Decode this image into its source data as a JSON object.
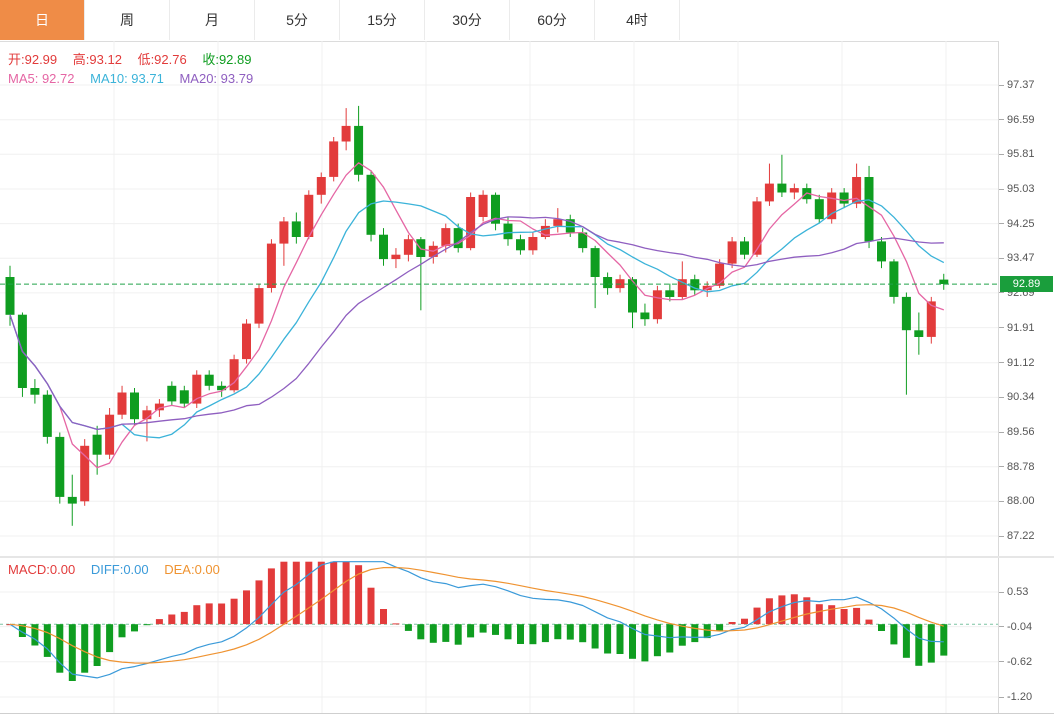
{
  "tabs": [
    {
      "key": "day",
      "label": "日",
      "active": true
    },
    {
      "key": "week",
      "label": "周",
      "active": false
    },
    {
      "key": "month",
      "label": "月",
      "active": false
    },
    {
      "key": "5min",
      "label": "5分",
      "active": false
    },
    {
      "key": "15min",
      "label": "15分",
      "active": false
    },
    {
      "key": "30min",
      "label": "30分",
      "active": false
    },
    {
      "key": "60min",
      "label": "60分",
      "active": false
    },
    {
      "key": "4hour",
      "label": "4时",
      "active": false
    }
  ],
  "price_panel": {
    "ohlc_legend": {
      "open": "开:92.99",
      "high": "高:93.12",
      "low": "低:92.76",
      "close": "收:92.89"
    },
    "ma_legend": {
      "ma5": "MA5: 92.72",
      "ma10": "MA10: 93.71",
      "ma20": "MA20: 93.79"
    },
    "axis_labels": [
      "97.37",
      "96.59",
      "95.81",
      "95.03",
      "94.25",
      "93.47",
      "92.69",
      "91.91",
      "91.12",
      "90.34",
      "89.56",
      "88.78",
      "88.00",
      "87.22"
    ],
    "current_price": "92.89"
  },
  "macd_panel": {
    "legend": {
      "macd": "MACD:0.00",
      "diff": "DIFF:0.00",
      "dea": "DEA:0.00"
    },
    "axis_labels": [
      "0.53",
      "-0.04",
      "-0.62",
      "-1.20"
    ]
  },
  "colors": {
    "up": "#e23b3b",
    "down": "#0f9d20",
    "ma5": "#e566a4",
    "ma10": "#3bb3d9",
    "ma20": "#8f5fc0",
    "diff": "#3a9ad9",
    "dea": "#ef9331",
    "active_tab": "#ef8c47",
    "price_line": "#22a24a",
    "badge_bg": "#1a9e3c"
  },
  "chart_data": [
    {
      "type": "candlestick",
      "panel": "price",
      "x": "time bars, oldest to newest (daily)",
      "ylim": [
        86.8,
        98.3
      ],
      "y_ticks": [
        97.37,
        96.59,
        95.81,
        95.03,
        94.25,
        93.47,
        92.69,
        91.91,
        91.12,
        90.34,
        89.56,
        88.78,
        88.0,
        87.22
      ],
      "grid": true,
      "legend_position": "top-left",
      "last_close": 92.89,
      "overlays": [
        {
          "name": "MA5",
          "type": "line",
          "period": 5,
          "legend_value": 92.72
        },
        {
          "name": "MA10",
          "type": "line",
          "period": 10,
          "legend_value": 93.71
        },
        {
          "name": "MA20",
          "type": "line",
          "period": 20,
          "legend_value": 93.79
        }
      ],
      "ohlc": [
        [
          93.05,
          93.3,
          91.95,
          92.2
        ],
        [
          92.2,
          92.25,
          90.35,
          90.55
        ],
        [
          90.55,
          90.75,
          90.2,
          90.4
        ],
        [
          90.4,
          90.5,
          89.3,
          89.45
        ],
        [
          89.45,
          89.55,
          87.95,
          88.1
        ],
        [
          88.1,
          88.6,
          87.45,
          87.95
        ],
        [
          88.0,
          89.4,
          87.9,
          89.25
        ],
        [
          89.5,
          89.7,
          88.6,
          89.05
        ],
        [
          89.05,
          90.1,
          88.95,
          89.95
        ],
        [
          89.95,
          90.6,
          89.85,
          90.45
        ],
        [
          90.45,
          90.55,
          89.7,
          89.85
        ],
        [
          89.85,
          90.15,
          89.35,
          90.05
        ],
        [
          90.05,
          90.3,
          89.9,
          90.2
        ],
        [
          90.6,
          90.7,
          90.15,
          90.25
        ],
        [
          90.5,
          90.6,
          90.1,
          90.2
        ],
        [
          90.2,
          90.95,
          90.1,
          90.85
        ],
        [
          90.85,
          90.95,
          90.5,
          90.6
        ],
        [
          90.6,
          90.7,
          90.35,
          90.5
        ],
        [
          90.5,
          91.3,
          90.45,
          91.2
        ],
        [
          91.2,
          92.1,
          91.1,
          92.0
        ],
        [
          92.0,
          92.9,
          91.9,
          92.8
        ],
        [
          92.8,
          93.9,
          92.7,
          93.8
        ],
        [
          93.8,
          94.4,
          93.3,
          94.3
        ],
        [
          94.3,
          94.5,
          93.8,
          93.95
        ],
        [
          93.95,
          95.0,
          93.9,
          94.9
        ],
        [
          94.9,
          95.4,
          94.7,
          95.3
        ],
        [
          95.3,
          96.2,
          95.2,
          96.1
        ],
        [
          96.1,
          96.85,
          95.9,
          96.45
        ],
        [
          96.45,
          96.9,
          95.2,
          95.35
        ],
        [
          95.35,
          95.45,
          93.85,
          94.0
        ],
        [
          94.0,
          94.15,
          93.3,
          93.45
        ],
        [
          93.45,
          93.7,
          93.25,
          93.55
        ],
        [
          93.55,
          94.0,
          93.4,
          93.9
        ],
        [
          93.9,
          93.95,
          92.3,
          93.5
        ],
        [
          93.5,
          93.85,
          93.35,
          93.75
        ],
        [
          93.75,
          94.25,
          93.6,
          94.15
        ],
        [
          94.15,
          94.25,
          93.6,
          93.7
        ],
        [
          93.7,
          94.95,
          93.65,
          94.85
        ],
        [
          94.4,
          95.0,
          94.3,
          94.9
        ],
        [
          94.9,
          94.95,
          94.1,
          94.25
        ],
        [
          94.25,
          94.4,
          93.75,
          93.9
        ],
        [
          93.9,
          94.0,
          93.55,
          93.65
        ],
        [
          93.65,
          94.05,
          93.55,
          93.95
        ],
        [
          93.95,
          94.35,
          93.9,
          94.2
        ],
        [
          94.2,
          94.6,
          94.05,
          94.35
        ],
        [
          94.35,
          94.45,
          93.95,
          94.05
        ],
        [
          94.05,
          94.15,
          93.6,
          93.7
        ],
        [
          93.7,
          93.75,
          92.35,
          93.05
        ],
        [
          93.05,
          93.15,
          92.65,
          92.8
        ],
        [
          92.8,
          93.1,
          92.7,
          93.0
        ],
        [
          93.0,
          93.05,
          91.9,
          92.25
        ],
        [
          92.25,
          92.45,
          91.95,
          92.1
        ],
        [
          92.1,
          92.85,
          92.0,
          92.75
        ],
        [
          92.75,
          92.9,
          92.5,
          92.6
        ],
        [
          92.6,
          93.4,
          92.55,
          93.0
        ],
        [
          93.0,
          93.1,
          92.65,
          92.75
        ],
        [
          92.75,
          92.95,
          92.6,
          92.85
        ],
        [
          92.85,
          93.45,
          92.8,
          93.35
        ],
        [
          93.35,
          93.95,
          93.25,
          93.85
        ],
        [
          93.85,
          93.95,
          93.45,
          93.55
        ],
        [
          93.55,
          94.85,
          93.5,
          94.75
        ],
        [
          94.75,
          95.6,
          94.65,
          95.15
        ],
        [
          95.15,
          95.8,
          94.85,
          94.95
        ],
        [
          94.95,
          95.15,
          94.8,
          95.05
        ],
        [
          95.05,
          95.15,
          94.7,
          94.8
        ],
        [
          94.8,
          94.9,
          94.25,
          94.35
        ],
        [
          94.35,
          95.05,
          94.25,
          94.95
        ],
        [
          94.95,
          95.05,
          94.6,
          94.7
        ],
        [
          94.7,
          95.6,
          94.6,
          95.3
        ],
        [
          95.3,
          95.55,
          93.7,
          93.85
        ],
        [
          93.85,
          93.95,
          93.25,
          93.4
        ],
        [
          93.4,
          93.45,
          92.45,
          92.6
        ],
        [
          92.6,
          92.7,
          90.4,
          91.85
        ],
        [
          91.85,
          92.25,
          91.3,
          91.7
        ],
        [
          91.7,
          92.6,
          91.55,
          92.5
        ],
        [
          92.99,
          93.12,
          92.76,
          92.89
        ]
      ]
    },
    {
      "type": "bar",
      "panel": "macd",
      "derivation": "MACD(12,26,9), histogram=(DIFF-DEA)*2, derived from the ohlc closes above",
      "series": [
        {
          "name": "MACD",
          "render": "histogram",
          "legend_value": 0.0
        },
        {
          "name": "DIFF",
          "render": "line",
          "legend_value": 0.0
        },
        {
          "name": "DEA",
          "render": "line",
          "legend_value": 0.0
        }
      ],
      "y_ticks": [
        0.53,
        -0.04,
        -0.62,
        -1.2
      ],
      "ylim": [
        -1.46,
        1.09
      ],
      "grid": true
    }
  ]
}
